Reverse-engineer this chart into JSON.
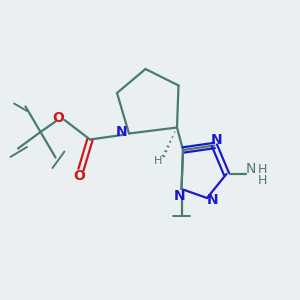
{
  "bg_color": "#eaeff1",
  "bond_color": "#4a7a70",
  "N_color": "#1a1acc",
  "O_color": "#cc1a1a",
  "NH_color": "#4a7a70",
  "H_color": "#4a7a70",
  "figsize": [
    3.0,
    3.0
  ],
  "dpi": 100,
  "xlim": [
    0,
    10
  ],
  "ylim": [
    0,
    10
  ],
  "lw": 1.6
}
